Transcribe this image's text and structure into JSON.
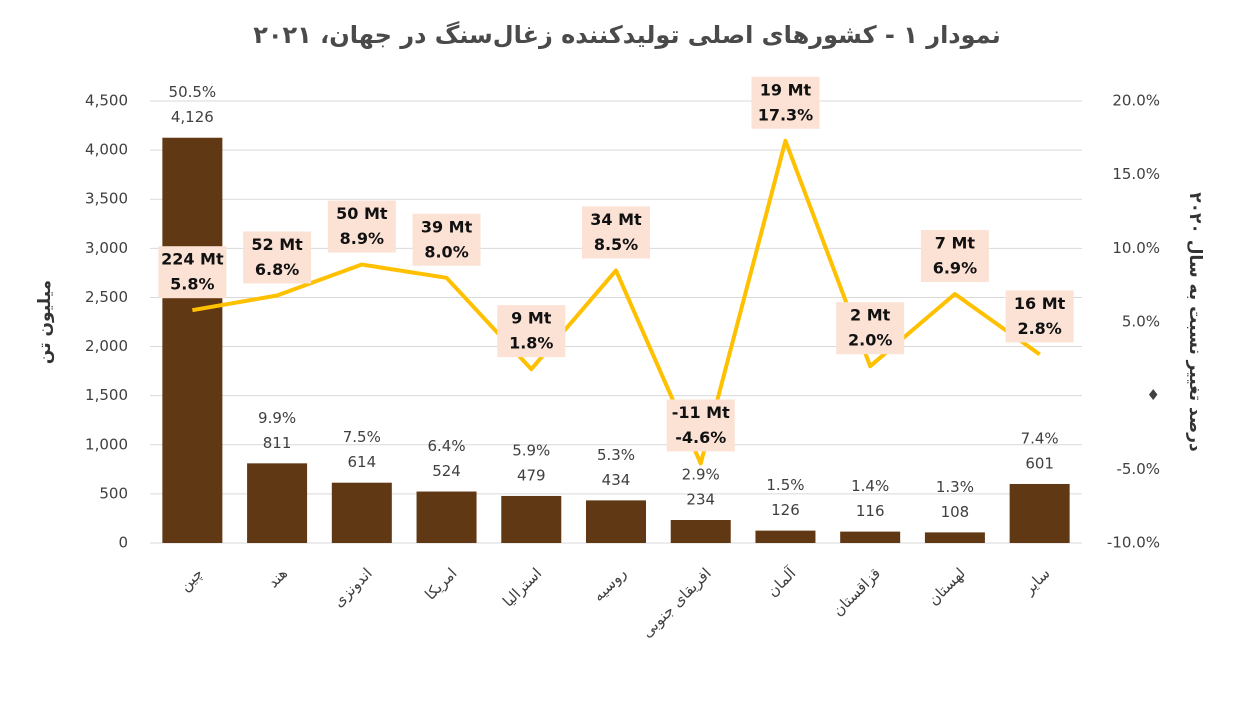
{
  "chart_data": {
    "type": "bar-line",
    "title": "نمودار ۱ - کشورهای اصلی تولیدکننده زغال‌سنگ در جهان، ۲۰۲۱",
    "y_label": "میلیون تن",
    "y2_label": "درصد تغییر نسبت به سال ۲۰۲۰",
    "categories": [
      "چین",
      "هند",
      "اندونزی",
      "امریکا",
      "استرالیا",
      "روسیه",
      "افریقای جنوبی",
      "آلمان",
      "قزاقستان",
      "لهستان",
      "سایر"
    ],
    "ylim": [
      0,
      4500
    ],
    "yticks": [
      0,
      500,
      {
        "value": 1000,
        "label": "1,000"
      },
      {
        "value": 1500,
        "label": "1,500"
      },
      {
        "value": 2000,
        "label": "2,000"
      },
      {
        "value": 2500,
        "label": "2,500"
      },
      {
        "value": 3000,
        "label": "3,000"
      },
      {
        "value": 3500,
        "label": "3,500"
      },
      {
        "value": 4000,
        "label": "4,000"
      },
      {
        "value": 4500,
        "label": "4,500"
      }
    ],
    "y2lim": [
      -10,
      20
    ],
    "y2ticks": [
      {
        "value": -10,
        "label": "-10.0%"
      },
      {
        "value": -5,
        "label": "-5.0%"
      },
      {
        "value": 0,
        "label": "♦"
      },
      {
        "value": 5,
        "label": "5.0%"
      },
      {
        "value": 10,
        "label": "10.0%"
      },
      {
        "value": 15,
        "label": "15.0%"
      },
      {
        "value": 20,
        "label": "20.0%"
      }
    ],
    "grid": true,
    "series": [
      {
        "type": "bar",
        "color": "#603813",
        "values": [
          4126,
          811,
          614,
          524,
          479,
          434,
          234,
          126,
          116,
          108,
          601
        ],
        "value_labels": [
          "4,126",
          "811",
          "614",
          "524",
          "479",
          "434",
          "234",
          "126",
          "116",
          "108",
          "601"
        ],
        "shares": [
          50.5,
          9.9,
          7.5,
          6.4,
          5.9,
          5.3,
          2.9,
          1.5,
          1.4,
          1.3,
          7.4
        ],
        "share_labels": [
          "50.5%",
          "9.9%",
          "7.5%",
          "6.4%",
          "5.9%",
          "5.3%",
          "2.9%",
          "1.5%",
          "1.4%",
          "1.3%",
          "7.4%"
        ]
      },
      {
        "type": "line",
        "axis": "y2",
        "color": "#ffc000",
        "label_box_color": "#fbe2d5",
        "values": [
          5.8,
          6.8,
          8.9,
          8.0,
          1.8,
          8.5,
          -4.6,
          17.3,
          2.0,
          6.9,
          2.8
        ],
        "value_labels": [
          "5.8%",
          "6.8%",
          "8.9%",
          "8.0%",
          "1.8%",
          "8.5%",
          "-4.6%",
          "17.3%",
          "2.0%",
          "6.9%",
          "2.8%"
        ],
        "changes": [
          224,
          52,
          50,
          39,
          9,
          34,
          -11,
          19,
          2,
          7,
          16
        ],
        "change_labels": [
          "224 Mt",
          "52 Mt",
          "50 Mt",
          "39 Mt",
          "9 Mt",
          "34 Mt",
          "-11 Mt",
          "19 Mt",
          "2 Mt",
          "7 Mt",
          "16 Mt"
        ]
      }
    ]
  }
}
